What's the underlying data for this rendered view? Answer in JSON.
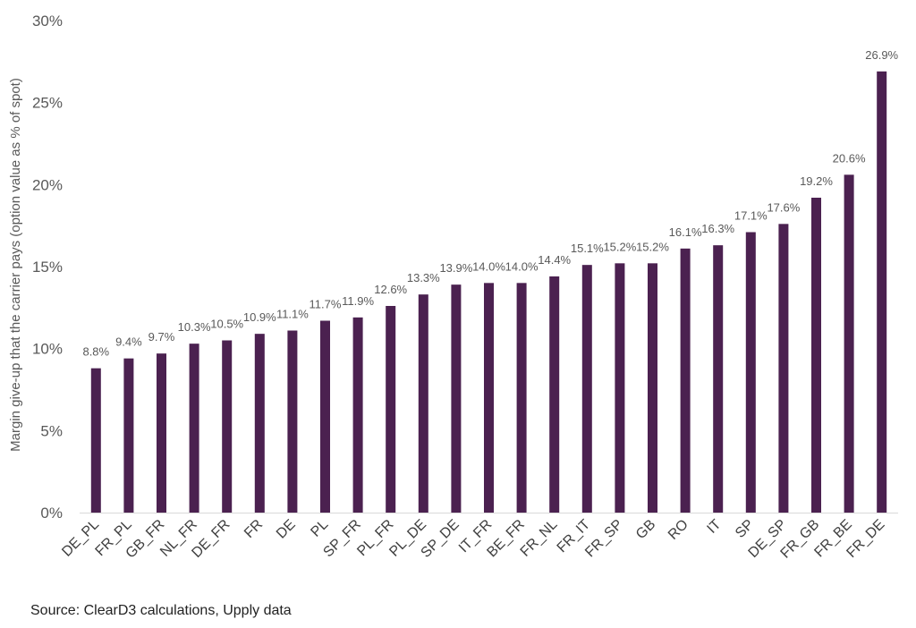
{
  "chart_data": {
    "type": "bar",
    "categories": [
      "DE_PL",
      "FR_PL",
      "GB_FR",
      "NL_FR",
      "DE_FR",
      "FR",
      "DE",
      "PL",
      "SP_FR",
      "PL_FR",
      "PL_DE",
      "SP_DE",
      "IT_FR",
      "BE_FR",
      "FR_NL",
      "FR_IT",
      "FR_SP",
      "GB",
      "RO",
      "IT",
      "SP",
      "DE_SP",
      "FR_GB",
      "FR_BE",
      "FR_DE"
    ],
    "values": [
      8.8,
      9.4,
      9.7,
      10.3,
      10.5,
      10.9,
      11.1,
      11.7,
      11.9,
      12.6,
      13.3,
      13.9,
      14.0,
      14.0,
      14.4,
      15.1,
      15.2,
      15.2,
      16.1,
      16.3,
      17.1,
      17.6,
      19.2,
      20.6,
      26.9
    ],
    "data_labels": [
      "8.8%",
      "9.4%",
      "9.7%",
      "10.3%",
      "10.5%",
      "10.9%",
      "11.1%",
      "11.7%",
      "11.9%",
      "12.6%",
      "13.3%",
      "13.9%",
      "14.0%",
      "14.0%",
      "14.4%",
      "15.1%",
      "15.2%",
      "15.2%",
      "16.1%",
      "16.3%",
      "17.1%",
      "17.6%",
      "19.2%",
      "20.6%",
      "26.9%"
    ],
    "ylabel": "Margin give-up that the carrier pays (option value as % of spot)",
    "xlabel": "",
    "yticks": [
      0,
      5,
      10,
      15,
      20,
      25,
      30
    ],
    "ytick_labels": [
      "0%",
      "5%",
      "10%",
      "15%",
      "20%",
      "25%",
      "30%"
    ],
    "ylim": [
      0,
      30
    ],
    "bar_color": "#4b2150",
    "grid": false,
    "legend": "none"
  },
  "source": "Source: ClearD3 calculations, Upply data"
}
